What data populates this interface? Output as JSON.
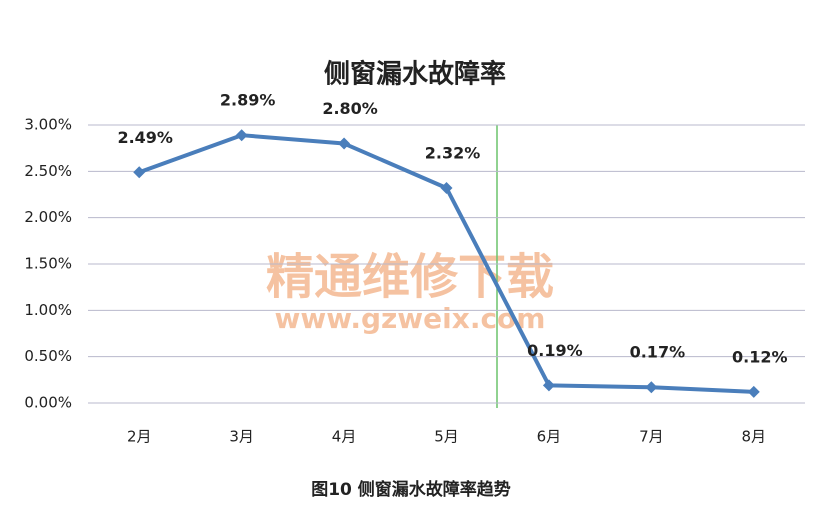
{
  "chart_data": {
    "type": "line",
    "title": "侧窗漏水故障率",
    "caption": "图10 侧窗漏水故障率趋势",
    "watermark": [
      "精通维修下载",
      "www.gzweix.com"
    ],
    "categories": [
      "2月",
      "3月",
      "4月",
      "5月",
      "6月",
      "7月",
      "8月"
    ],
    "values": [
      2.49,
      2.89,
      2.8,
      2.32,
      0.19,
      0.17,
      0.12
    ],
    "value_labels": [
      "2.49%",
      "2.89%",
      "2.80%",
      "2.32%",
      "0.19%",
      "0.17%",
      "0.12%"
    ],
    "color": "#4a7ebb",
    "ylim": [
      0,
      3
    ],
    "yticks": [
      {
        "value": 0,
        "label": "0.00%"
      },
      {
        "value": 0.5,
        "label": "0.50%"
      },
      {
        "value": 1,
        "label": "1.00%"
      },
      {
        "value": 1.5,
        "label": "1.50%"
      },
      {
        "value": 2,
        "label": "2.00%"
      },
      {
        "value": 2.5,
        "label": "2.50%"
      },
      {
        "value": 3,
        "label": "3.00%"
      }
    ],
    "grid": true
  }
}
